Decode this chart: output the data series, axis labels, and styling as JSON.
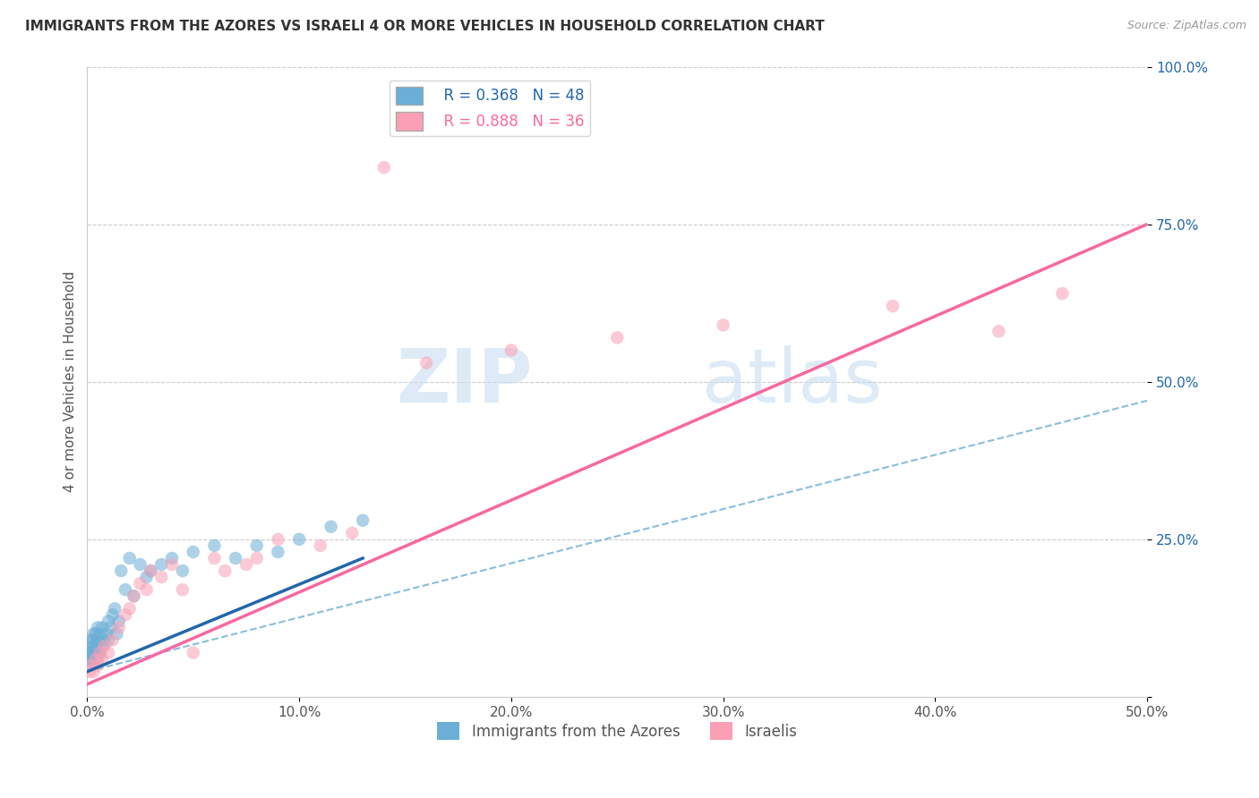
{
  "title": "IMMIGRANTS FROM THE AZORES VS ISRAELI 4 OR MORE VEHICLES IN HOUSEHOLD CORRELATION CHART",
  "source": "Source: ZipAtlas.com",
  "xlabel": "",
  "ylabel": "4 or more Vehicles in Household",
  "xlim": [
    0,
    0.5
  ],
  "ylim": [
    0,
    1.0
  ],
  "xtick_vals": [
    0.0,
    0.1,
    0.2,
    0.3,
    0.4,
    0.5
  ],
  "ytick_vals": [
    0.0,
    0.25,
    0.5,
    0.75,
    1.0
  ],
  "xtick_labels": [
    "0.0%",
    "10.0%",
    "20.0%",
    "30.0%",
    "40.0%",
    "50.0%"
  ],
  "ytick_labels": [
    "",
    "25.0%",
    "50.0%",
    "75.0%",
    "100.0%"
  ],
  "legend1_r": "0.368",
  "legend1_n": "48",
  "legend2_r": "0.888",
  "legend2_n": "36",
  "color_blue": "#6baed6",
  "color_pink": "#fa9fb5",
  "line_blue_solid": "#2166ac",
  "line_blue_dashed": "#6baed6",
  "line_pink_solid": "#f768a1",
  "background_color": "#ffffff",
  "watermark_zip": "ZIP",
  "watermark_atlas": "atlas",
  "azores_x": [
    0.001,
    0.001,
    0.001,
    0.002,
    0.002,
    0.002,
    0.002,
    0.003,
    0.003,
    0.003,
    0.003,
    0.004,
    0.004,
    0.004,
    0.005,
    0.005,
    0.005,
    0.006,
    0.006,
    0.007,
    0.007,
    0.008,
    0.009,
    0.01,
    0.01,
    0.011,
    0.012,
    0.013,
    0.014,
    0.015,
    0.016,
    0.018,
    0.02,
    0.022,
    0.025,
    0.028,
    0.03,
    0.035,
    0.04,
    0.045,
    0.05,
    0.06,
    0.07,
    0.08,
    0.09,
    0.1,
    0.115,
    0.13
  ],
  "azores_y": [
    0.05,
    0.06,
    0.07,
    0.06,
    0.07,
    0.08,
    0.09,
    0.07,
    0.08,
    0.09,
    0.1,
    0.07,
    0.08,
    0.1,
    0.06,
    0.09,
    0.11,
    0.07,
    0.1,
    0.08,
    0.11,
    0.09,
    0.1,
    0.09,
    0.12,
    0.11,
    0.13,
    0.14,
    0.1,
    0.12,
    0.2,
    0.17,
    0.22,
    0.16,
    0.21,
    0.19,
    0.2,
    0.21,
    0.22,
    0.2,
    0.23,
    0.24,
    0.22,
    0.24,
    0.23,
    0.25,
    0.27,
    0.28
  ],
  "israeli_x": [
    0.001,
    0.002,
    0.003,
    0.004,
    0.005,
    0.006,
    0.007,
    0.008,
    0.01,
    0.012,
    0.015,
    0.018,
    0.02,
    0.022,
    0.025,
    0.028,
    0.03,
    0.035,
    0.04,
    0.045,
    0.05,
    0.06,
    0.065,
    0.075,
    0.08,
    0.09,
    0.11,
    0.125,
    0.14,
    0.16,
    0.2,
    0.25,
    0.3,
    0.38,
    0.43,
    0.46
  ],
  "israeli_y": [
    0.04,
    0.05,
    0.04,
    0.06,
    0.05,
    0.07,
    0.06,
    0.08,
    0.07,
    0.09,
    0.11,
    0.13,
    0.14,
    0.16,
    0.18,
    0.17,
    0.2,
    0.19,
    0.21,
    0.17,
    0.07,
    0.22,
    0.2,
    0.21,
    0.22,
    0.25,
    0.24,
    0.26,
    0.84,
    0.53,
    0.55,
    0.57,
    0.59,
    0.62,
    0.58,
    0.64
  ],
  "blue_line_x0": 0.0,
  "blue_line_y0": 0.04,
  "blue_line_x1": 0.13,
  "blue_line_y1": 0.22,
  "dashed_line_x0": 0.0,
  "dashed_line_y0": 0.04,
  "dashed_line_x1": 0.5,
  "dashed_line_y1": 0.47,
  "pink_line_x0": 0.0,
  "pink_line_y0": 0.02,
  "pink_line_x1": 0.5,
  "pink_line_y1": 0.75
}
